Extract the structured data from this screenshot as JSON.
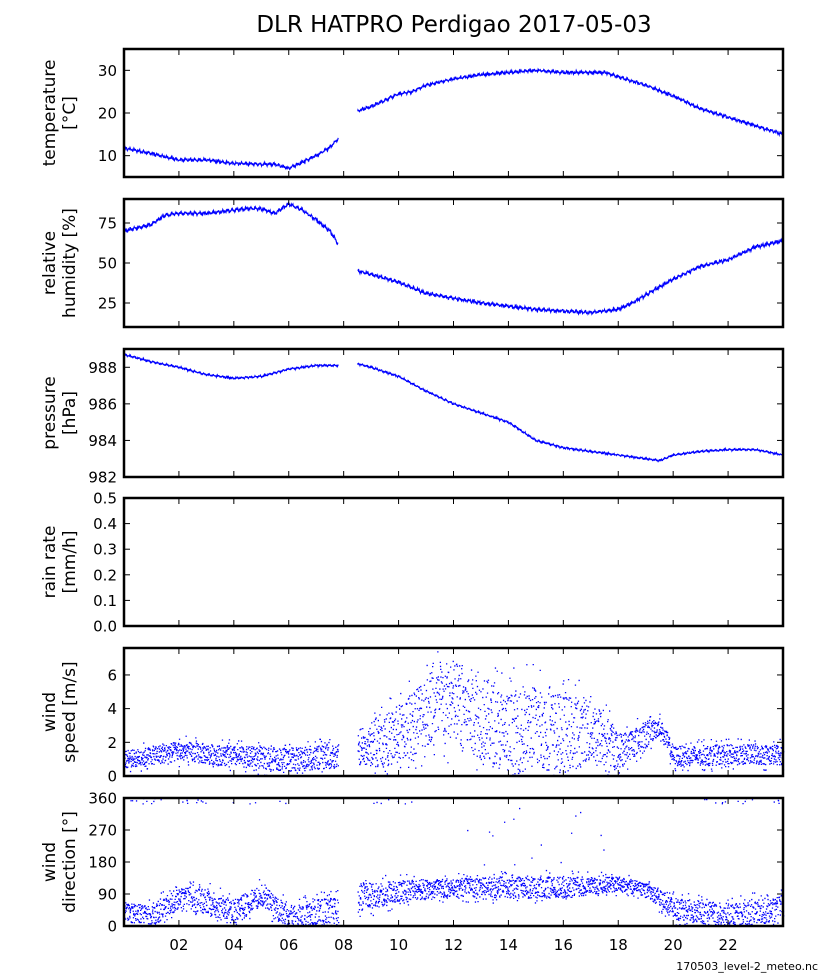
{
  "figure": {
    "title": "DLR HATPRO  Perdigao  2017-05-03",
    "footer": "170503_level-2_meteo.nc",
    "line_color": "#0000ff"
  },
  "chart_data": [
    {
      "id": "temperature",
      "type": "line",
      "ylabel": [
        "temperature",
        "[°C]"
      ],
      "xlim": [
        0,
        24
      ],
      "ylim": [
        5,
        35
      ],
      "yticks": [
        10,
        20,
        30
      ],
      "gap": [
        7.8,
        8.5
      ],
      "noise": 0.4,
      "series": [
        {
          "name": "temperature",
          "x": [
            0,
            1,
            2,
            3,
            4,
            5,
            5.5,
            6,
            6.5,
            7,
            7.5,
            7.8,
            8.5,
            9,
            9.5,
            10,
            10.5,
            11,
            12,
            13,
            14,
            15,
            16,
            17,
            17.5,
            18,
            19,
            20,
            21,
            22,
            23,
            24
          ],
          "y": [
            11.8,
            10.5,
            9.0,
            9.0,
            8.2,
            8.0,
            8.0,
            7.0,
            8.5,
            10.0,
            12.0,
            14.0,
            20.5,
            21.5,
            23.0,
            24.5,
            25.0,
            26.5,
            28.0,
            29.0,
            29.5,
            30.0,
            29.5,
            29.5,
            29.5,
            28.5,
            26.5,
            24.0,
            21.0,
            19.0,
            17.0,
            15.0
          ]
        }
      ]
    },
    {
      "id": "humidity",
      "type": "line",
      "ylabel": [
        "relative",
        "humidity [%]"
      ],
      "xlim": [
        0,
        24
      ],
      "ylim": [
        10,
        90
      ],
      "yticks": [
        25,
        50,
        75
      ],
      "gap": [
        7.8,
        8.5
      ],
      "noise": 1.2,
      "series": [
        {
          "name": "relative humidity",
          "x": [
            0,
            1,
            1.5,
            2,
            3,
            4,
            4.5,
            5,
            5.5,
            6,
            6.5,
            7,
            7.5,
            7.8,
            8.5,
            9,
            10,
            11,
            12,
            13,
            14,
            15,
            16,
            17,
            18,
            18.5,
            19,
            19.5,
            20,
            21,
            22,
            23,
            24
          ],
          "y": [
            70,
            74,
            80,
            81,
            81,
            83,
            84,
            84,
            81,
            87,
            83,
            77,
            70,
            62,
            45,
            43,
            38,
            31,
            28,
            25,
            23,
            21,
            20,
            19,
            21,
            25,
            30,
            35,
            40,
            48,
            52,
            60,
            64
          ]
        }
      ]
    },
    {
      "id": "pressure",
      "type": "line",
      "ylabel": [
        "pressure",
        "[hPa]"
      ],
      "xlim": [
        0,
        24
      ],
      "ylim": [
        982,
        989
      ],
      "yticks": [
        982,
        984,
        986,
        988
      ],
      "gap": [
        7.8,
        8.5
      ],
      "noise": 0.06,
      "series": [
        {
          "name": "pressure",
          "x": [
            0,
            1,
            2,
            3,
            4,
            5,
            6,
            7,
            7.8,
            8.5,
            9,
            10,
            11,
            12,
            13,
            14,
            15,
            16,
            17,
            18,
            19,
            19.5,
            20,
            21,
            22,
            23,
            24
          ],
          "y": [
            988.7,
            988.3,
            988.0,
            987.6,
            987.4,
            987.5,
            987.9,
            988.1,
            988.1,
            988.2,
            988.0,
            987.5,
            986.7,
            986.0,
            985.5,
            985.0,
            984.0,
            983.6,
            983.4,
            983.2,
            983.0,
            982.9,
            983.2,
            983.4,
            983.5,
            983.5,
            983.2
          ]
        }
      ]
    },
    {
      "id": "rain_rate",
      "type": "line",
      "ylabel": [
        "rain rate",
        "[mm/h]"
      ],
      "xlim": [
        0,
        24
      ],
      "ylim": [
        0,
        0.5
      ],
      "yticks": [
        0.0,
        0.1,
        0.2,
        0.3,
        0.4,
        0.5
      ],
      "series": [
        {
          "name": "rain rate",
          "x": [],
          "y": []
        }
      ]
    },
    {
      "id": "wind_speed",
      "type": "scatter",
      "ylabel": [
        "wind",
        "speed [m/s]"
      ],
      "xlim": [
        0,
        24
      ],
      "ylim": [
        0,
        7.6
      ],
      "yticks": [
        0,
        2,
        4,
        6
      ],
      "gap": [
        7.8,
        8.5
      ],
      "series": [
        {
          "name": "wind speed envelope",
          "x": [
            0,
            2,
            4,
            6,
            7.8,
            8.5,
            9,
            10,
            11,
            12,
            13,
            14,
            15,
            16,
            17,
            18,
            19,
            19.5,
            20,
            22,
            24
          ],
          "y": [
            1.0,
            1.5,
            1.2,
            1.0,
            1.2,
            1.5,
            1.8,
            2.5,
            4.0,
            4.5,
            3.5,
            2.5,
            3.0,
            2.5,
            2.8,
            1.5,
            2.5,
            3.0,
            1.2,
            1.3,
            1.3
          ],
          "spread": [
            0.5,
            0.6,
            0.6,
            0.7,
            0.7,
            0.8,
            1.2,
            1.8,
            2.2,
            2.5,
            2.5,
            2.5,
            2.5,
            2.3,
            2.0,
            1.0,
            0.8,
            0.5,
            0.6,
            0.6,
            0.6
          ]
        }
      ]
    },
    {
      "id": "wind_direction",
      "type": "scatter",
      "ylabel": [
        "wind",
        "direction [°]"
      ],
      "xlim": [
        0,
        24
      ],
      "ylim": [
        0,
        360
      ],
      "yticks": [
        0,
        90,
        180,
        270,
        360
      ],
      "gap": [
        7.8,
        8.5
      ],
      "series": [
        {
          "name": "wind direction envelope",
          "x": [
            0,
            1,
            2,
            3,
            4,
            5,
            6,
            7,
            7.8,
            8.5,
            10,
            12,
            14,
            16,
            17,
            18,
            19,
            20,
            22,
            24
          ],
          "y": [
            40,
            30,
            80,
            70,
            40,
            90,
            20,
            40,
            40,
            80,
            100,
            110,
            110,
            110,
            115,
            120,
            105,
            50,
            30,
            50
          ],
          "spread": [
            25,
            30,
            30,
            35,
            35,
            30,
            35,
            40,
            40,
            40,
            30,
            25,
            30,
            30,
            25,
            20,
            20,
            30,
            35,
            35
          ]
        }
      ]
    }
  ],
  "xaxis": {
    "ticks": [
      2,
      4,
      6,
      8,
      10,
      12,
      14,
      16,
      18,
      20,
      22
    ],
    "tick_labels": [
      "02",
      "04",
      "06",
      "08",
      "10",
      "12",
      "14",
      "16",
      "18",
      "20",
      "22"
    ]
  }
}
